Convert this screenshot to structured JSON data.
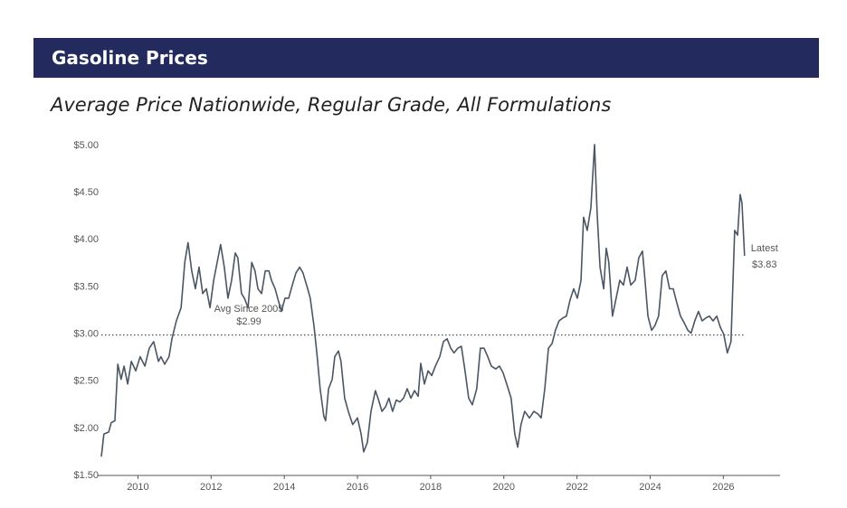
{
  "chart_data": {
    "type": "line",
    "title": "Gasoline Prices",
    "subtitle": "Average Price Nationwide, Regular Grade, All Formulations",
    "xlim": [
      2009,
      2027.55
    ],
    "xticks": [
      2010,
      2012,
      2014,
      2016,
      2018,
      2020,
      2022,
      2024,
      2026
    ],
    "ylim": [
      1.5,
      5.0
    ],
    "yticks": [
      {
        "value": 1.5,
        "label": "$1.50"
      },
      {
        "value": 2.0,
        "label": "$2.00"
      },
      {
        "value": 2.5,
        "label": "$2.50"
      },
      {
        "value": 3.0,
        "label": "$3.00"
      },
      {
        "value": 3.5,
        "label": "$3.50"
      },
      {
        "value": 4.0,
        "label": "$4.00"
      },
      {
        "value": 4.5,
        "label": "$4.50"
      },
      {
        "value": 5.0,
        "label": "$5.00"
      }
    ],
    "color": "#4b5663",
    "reference_line": {
      "value": 2.99,
      "label": "Avg Since 2005",
      "value_label": "$2.99",
      "color": "#4b5663"
    },
    "latest": {
      "value": 3.83,
      "label": "Latest",
      "value_label": "$3.83"
    },
    "x": [
      2009.0,
      2009.07,
      2009.2,
      2009.27,
      2009.37,
      2009.45,
      2009.54,
      2009.62,
      2009.72,
      2009.82,
      2009.94,
      2010.06,
      2010.19,
      2010.31,
      2010.43,
      2010.56,
      2010.63,
      2010.73,
      2010.85,
      2010.93,
      2011.05,
      2011.18,
      2011.28,
      2011.37,
      2011.47,
      2011.57,
      2011.67,
      2011.77,
      2011.87,
      2011.97,
      2012.07,
      2012.19,
      2012.26,
      2012.36,
      2012.46,
      2012.56,
      2012.66,
      2012.73,
      2012.83,
      2012.91,
      2013.01,
      2013.11,
      2013.2,
      2013.28,
      2013.38,
      2013.48,
      2013.58,
      2013.65,
      2013.75,
      2013.82,
      2013.92,
      2014.02,
      2014.12,
      2014.22,
      2014.32,
      2014.42,
      2014.51,
      2014.64,
      2014.71,
      2014.81,
      2014.89,
      2014.98,
      2015.08,
      2015.13,
      2015.21,
      2015.31,
      2015.38,
      2015.48,
      2015.55,
      2015.65,
      2015.75,
      2015.87,
      2016.0,
      2016.1,
      2016.17,
      2016.27,
      2016.37,
      2016.49,
      2016.57,
      2016.67,
      2016.77,
      2016.86,
      2016.96,
      2017.06,
      2017.16,
      2017.26,
      2017.36,
      2017.46,
      2017.56,
      2017.66,
      2017.73,
      2017.83,
      2017.93,
      2018.03,
      2018.13,
      2018.25,
      2018.35,
      2018.45,
      2018.55,
      2018.64,
      2018.74,
      2018.84,
      2018.94,
      2019.04,
      2019.14,
      2019.26,
      2019.36,
      2019.46,
      2019.56,
      2019.66,
      2019.78,
      2019.88,
      2019.98,
      2020.08,
      2020.2,
      2020.3,
      2020.38,
      2020.47,
      2020.57,
      2020.7,
      2020.82,
      2020.94,
      2021.02,
      2021.12,
      2021.22,
      2021.32,
      2021.41,
      2021.51,
      2021.61,
      2021.71,
      2021.81,
      2021.91,
      2022.01,
      2022.11,
      2022.18,
      2022.28,
      2022.38,
      2022.48,
      2022.55,
      2022.63,
      2022.73,
      2022.8,
      2022.87,
      2022.97,
      2023.07,
      2023.17,
      2023.27,
      2023.37,
      2023.47,
      2023.59,
      2023.69,
      2023.79,
      2023.86,
      2023.94,
      2024.04,
      2024.13,
      2024.23,
      2024.33,
      2024.43,
      2024.53,
      2024.63,
      2024.73,
      2024.83,
      2024.93,
      2025.03,
      2025.12,
      2025.22,
      2025.32,
      2025.42,
      2025.52,
      2025.62,
      2025.72,
      2025.82,
      2025.92,
      2026.01,
      2026.11,
      2026.21,
      2026.31,
      2026.39,
      2026.46,
      2026.51,
      2026.58
    ],
    "values": [
      1.7,
      1.94,
      1.96,
      2.06,
      2.08,
      2.68,
      2.52,
      2.66,
      2.47,
      2.71,
      2.61,
      2.76,
      2.66,
      2.85,
      2.92,
      2.71,
      2.76,
      2.68,
      2.76,
      2.95,
      3.14,
      3.28,
      3.76,
      3.97,
      3.67,
      3.48,
      3.71,
      3.43,
      3.48,
      3.28,
      3.57,
      3.81,
      3.95,
      3.71,
      3.38,
      3.57,
      3.86,
      3.81,
      3.43,
      3.38,
      3.28,
      3.76,
      3.67,
      3.48,
      3.43,
      3.67,
      3.67,
      3.57,
      3.48,
      3.38,
      3.24,
      3.38,
      3.38,
      3.52,
      3.65,
      3.71,
      3.65,
      3.48,
      3.38,
      3.09,
      2.8,
      2.42,
      2.13,
      2.08,
      2.42,
      2.52,
      2.76,
      2.82,
      2.71,
      2.32,
      2.18,
      2.04,
      2.11,
      1.94,
      1.75,
      1.85,
      2.18,
      2.4,
      2.31,
      2.18,
      2.23,
      2.32,
      2.18,
      2.3,
      2.28,
      2.32,
      2.42,
      2.32,
      2.4,
      2.34,
      2.69,
      2.47,
      2.61,
      2.56,
      2.66,
      2.76,
      2.92,
      2.95,
      2.85,
      2.8,
      2.85,
      2.87,
      2.61,
      2.32,
      2.25,
      2.42,
      2.85,
      2.85,
      2.76,
      2.66,
      2.63,
      2.66,
      2.59,
      2.47,
      2.32,
      1.94,
      1.8,
      2.04,
      2.18,
      2.11,
      2.18,
      2.15,
      2.11,
      2.42,
      2.85,
      2.9,
      3.04,
      3.14,
      3.17,
      3.19,
      3.36,
      3.48,
      3.38,
      3.57,
      4.24,
      4.1,
      4.34,
      5.01,
      4.29,
      3.71,
      3.48,
      3.91,
      3.76,
      3.19,
      3.38,
      3.57,
      3.52,
      3.71,
      3.52,
      3.57,
      3.81,
      3.88,
      3.57,
      3.19,
      3.04,
      3.09,
      3.19,
      3.62,
      3.67,
      3.48,
      3.48,
      3.33,
      3.19,
      3.12,
      3.04,
      3.01,
      3.14,
      3.24,
      3.14,
      3.17,
      3.19,
      3.14,
      3.19,
      3.07,
      3.0,
      2.8,
      2.92,
      4.1,
      4.05,
      4.48,
      4.39,
      3.83
    ]
  }
}
